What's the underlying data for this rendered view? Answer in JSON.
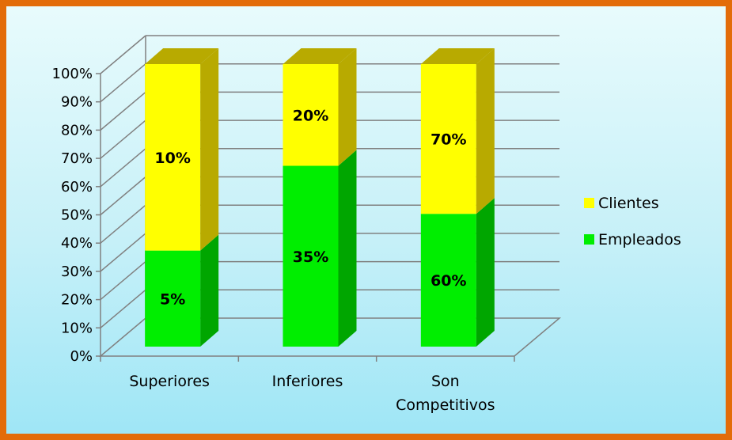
{
  "chart_data": {
    "type": "bar",
    "stacked": true,
    "three_d": true,
    "categories": [
      "Superiores",
      "Inferiores",
      [
        "Son",
        "Competitivos"
      ]
    ],
    "series": [
      {
        "name": "Empleados",
        "values": [
          34,
          64,
          47
        ],
        "labels": [
          "5%",
          "35%",
          "60%"
        ],
        "color": "#00ee00",
        "side_color": "#00a600"
      },
      {
        "name": "Clientes",
        "values": [
          66,
          36,
          53
        ],
        "labels": [
          "10%",
          "20%",
          "70%"
        ],
        "color": "#ffff00",
        "side_color": "#b8aa00"
      }
    ],
    "y_ticks": [
      "0%",
      "10%",
      "20%",
      "30%",
      "40%",
      "50%",
      "60%",
      "70%",
      "80%",
      "90%",
      "100%"
    ],
    "ylim": [
      0,
      100
    ],
    "grid": true,
    "legend_position": "right"
  },
  "colors": {
    "border": "#e36c09",
    "gridline": "#808080"
  }
}
